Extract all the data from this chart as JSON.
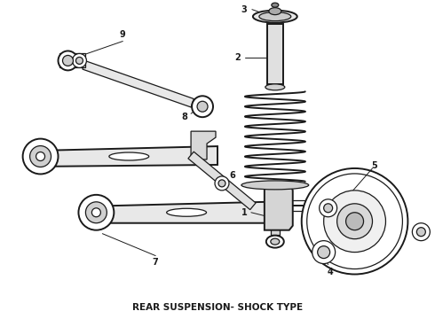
{
  "title": "REAR SUSPENSION- SHOCK TYPE",
  "background_color": "#ffffff",
  "line_color": "#1a1a1a",
  "title_fontsize": 7.5,
  "fig_width": 4.9,
  "fig_height": 3.6,
  "dpi": 100
}
